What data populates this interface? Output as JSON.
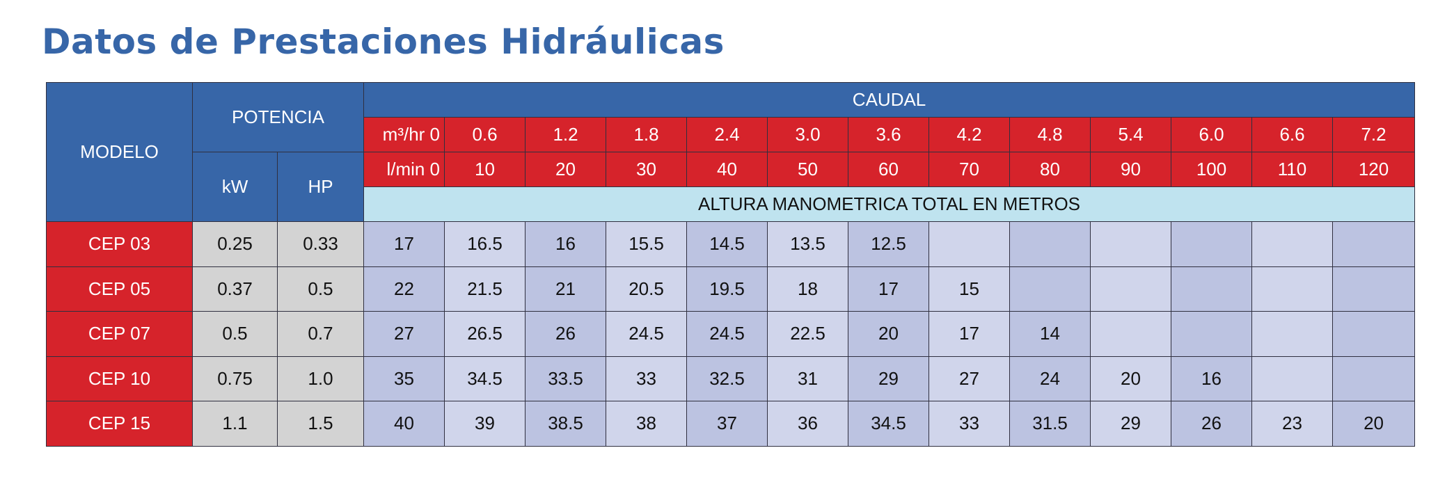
{
  "title": "Datos de Prestaciones Hidráulicas",
  "table": {
    "modelo_label": "MODELO",
    "potencia_label": "POTENCIA",
    "kw_label": "kW",
    "hp_label": "HP",
    "caudal_label": "CAUDAL",
    "m3hr_label": "m³/hr  0",
    "lmin_label": "l/min  0",
    "altura_label": "ALTURA MANOMETRICA TOTAL EN METROS",
    "m3hr_values": [
      "0.6",
      "1.2",
      "1.8",
      "2.4",
      "3.0",
      "3.6",
      "4.2",
      "4.8",
      "5.4",
      "6.0",
      "6.6",
      "7.2"
    ],
    "lmin_values": [
      "10",
      "20",
      "30",
      "40",
      "50",
      "60",
      "70",
      "80",
      "90",
      "100",
      "110",
      "120"
    ],
    "rows": [
      {
        "model": "CEP 03",
        "kw": "0.25",
        "hp": "0.33",
        "values": [
          "17",
          "16.5",
          "16",
          "15.5",
          "14.5",
          "13.5",
          "12.5",
          "",
          "",
          "",
          "",
          "",
          ""
        ]
      },
      {
        "model": "CEP 05",
        "kw": "0.37",
        "hp": "0.5",
        "values": [
          "22",
          "21.5",
          "21",
          "20.5",
          "19.5",
          "18",
          "17",
          "15",
          "",
          "",
          "",
          "",
          ""
        ]
      },
      {
        "model": "CEP 07",
        "kw": "0.5",
        "hp": "0.7",
        "values": [
          "27",
          "26.5",
          "26",
          "24.5",
          "24.5",
          "22.5",
          "20",
          "17",
          "14",
          "",
          "",
          "",
          ""
        ]
      },
      {
        "model": "CEP 10",
        "kw": "0.75",
        "hp": "1.0",
        "values": [
          "35",
          "34.5",
          "33.5",
          "33",
          "32.5",
          "31",
          "29",
          "27",
          "24",
          "20",
          "16",
          "",
          ""
        ]
      },
      {
        "model": "CEP 15",
        "kw": "1.1",
        "hp": "1.5",
        "values": [
          "40",
          "39",
          "38.5",
          "38",
          "37",
          "36",
          "34.5",
          "33",
          "31.5",
          "29",
          "26",
          "23",
          "20"
        ]
      }
    ]
  },
  "colors": {
    "header_blue": "#3766a8",
    "header_red": "#d6232b",
    "subheader_light_blue": "#bfe3ef",
    "power_gray": "#d3d3d3",
    "value_lavender_dark": "#bcc3e1",
    "value_lavender_light": "#d0d5eb"
  }
}
